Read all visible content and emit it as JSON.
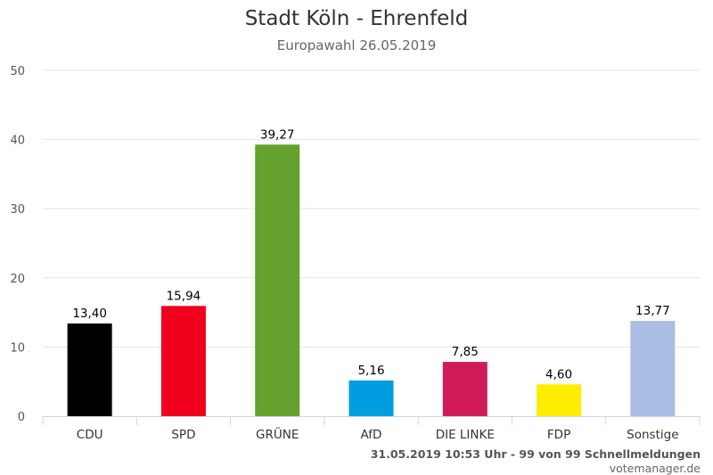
{
  "chart_data": {
    "type": "bar",
    "title": "Stadt Köln - Ehrenfeld",
    "subtitle": "Europawahl 26.05.2019",
    "categories": [
      "CDU",
      "SPD",
      "GRÜNE",
      "AfD",
      "DIE LINKE",
      "FDP",
      "Sonstige"
    ],
    "values": [
      13.4,
      15.94,
      39.27,
      5.16,
      7.85,
      4.6,
      13.77
    ],
    "value_labels": [
      "13,40",
      "15,94",
      "39,27",
      "5,16",
      "7,85",
      "4,60",
      "13,77"
    ],
    "colors": [
      "#000000",
      "#f0001c",
      "#64a12d",
      "#009ee0",
      "#d01b5a",
      "#ffed00",
      "#aabde3"
    ],
    "ylim": [
      0,
      50
    ],
    "yticks": [
      0,
      10,
      20,
      30,
      40,
      50
    ],
    "xlabel": "",
    "ylabel": "",
    "grid": true
  },
  "footer": {
    "status": "31.05.2019 10:53 Uhr - 99 von 99 Schnellmeldungen",
    "credit": "votemanager.de"
  }
}
